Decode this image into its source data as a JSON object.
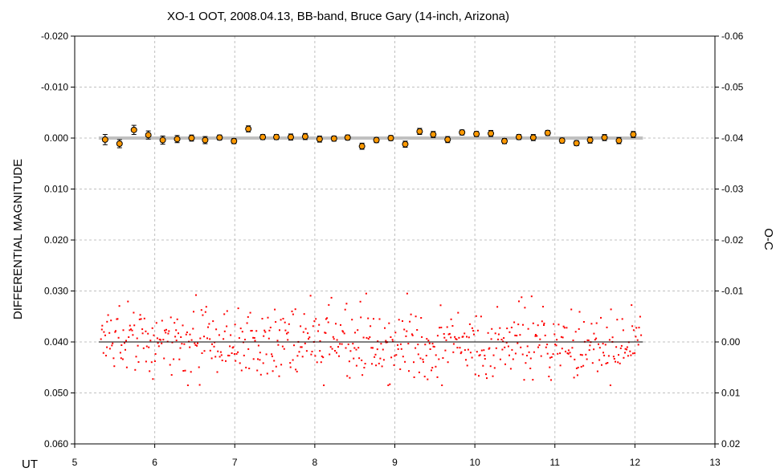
{
  "chart_data": {
    "type": "scatter",
    "title": "XO-1 OOT, 2008.04.13, BB-band, Bruce Gary (14-inch, Arizona)",
    "xlabel": "UT",
    "ylabel": "DIFFERENTIAL MAGNITUDE",
    "y2label": "O-C",
    "xlim": [
      5,
      13
    ],
    "ylim": [
      -0.02,
      0.06
    ],
    "y2lim": [
      -0.06,
      0.02
    ],
    "y_reversed": true,
    "grid": true,
    "x_ticks": [
      "5",
      "6",
      "7",
      "8",
      "9",
      "10",
      "11",
      "12",
      "13"
    ],
    "y_ticks": [
      "-0.020",
      "-0.010",
      "0.000",
      "0.010",
      "0.020",
      "0.030",
      "0.040",
      "0.050",
      "0.060"
    ],
    "y2_ticks": [
      "-0.06",
      "-0.05",
      "-0.04",
      "-0.03",
      "-0.02",
      "-0.01",
      "0.00",
      "0.01",
      "0.02"
    ],
    "series": [
      {
        "role": "binned-averages",
        "axis": "left",
        "color": "#ff9900",
        "x": [
          5.38,
          5.56,
          5.74,
          5.92,
          6.1,
          6.28,
          6.46,
          6.63,
          6.81,
          6.99,
          7.17,
          7.35,
          7.52,
          7.7,
          7.88,
          8.06,
          8.24,
          8.41,
          8.59,
          8.77,
          8.95,
          9.13,
          9.31,
          9.48,
          9.66,
          9.84,
          10.02,
          10.2,
          10.37,
          10.55,
          10.73,
          10.91,
          11.09,
          11.27,
          11.44,
          11.62,
          11.8,
          11.98
        ],
        "y": [
          0.0003,
          0.0011,
          -0.0016,
          -0.0006,
          0.0004,
          0.0002,
          0.0,
          0.0004,
          -0.0001,
          0.0006,
          -0.0018,
          -0.0002,
          -0.0002,
          -0.0002,
          -0.0003,
          0.0002,
          0.0001,
          -0.0001,
          0.0016,
          0.0004,
          0.0,
          0.0012,
          -0.0013,
          -0.0007,
          0.0003,
          -0.0011,
          -0.0008,
          -0.0009,
          0.0006,
          -0.0002,
          -0.0001,
          -0.001,
          0.0005,
          0.001,
          0.0004,
          -0.0001,
          0.0005,
          -0.0007
        ],
        "yerr": [
          0.001,
          0.0008,
          0.0009,
          0.0008,
          0.0008,
          0.0007,
          0.0006,
          0.0007,
          0.0005,
          0.0005,
          0.0006,
          0.0005,
          0.0005,
          0.0006,
          0.0006,
          0.0006,
          0.0005,
          0.0005,
          0.0006,
          0.0005,
          0.0005,
          0.0006,
          0.0006,
          0.0006,
          0.0006,
          0.0005,
          0.0005,
          0.0006,
          0.0005,
          0.0005,
          0.0006,
          0.0005,
          0.0005,
          0.0005,
          0.0006,
          0.0006,
          0.0006,
          0.0006
        ]
      },
      {
        "role": "model-line",
        "axis": "left",
        "color": "#c0c0c0",
        "x": [
          5.3,
          12.1
        ],
        "y": [
          0.0,
          0.0
        ]
      },
      {
        "role": "residuals",
        "axis": "right",
        "color": "#ff0000",
        "x_range": [
          5.32,
          12.08
        ],
        "n_points": 640,
        "y_center": 0.0,
        "y_spread": 0.006
      },
      {
        "role": "zero-line",
        "axis": "right",
        "color": "#000000",
        "x": [
          5.3,
          12.1
        ],
        "y": [
          0.0,
          0.0
        ]
      }
    ]
  }
}
